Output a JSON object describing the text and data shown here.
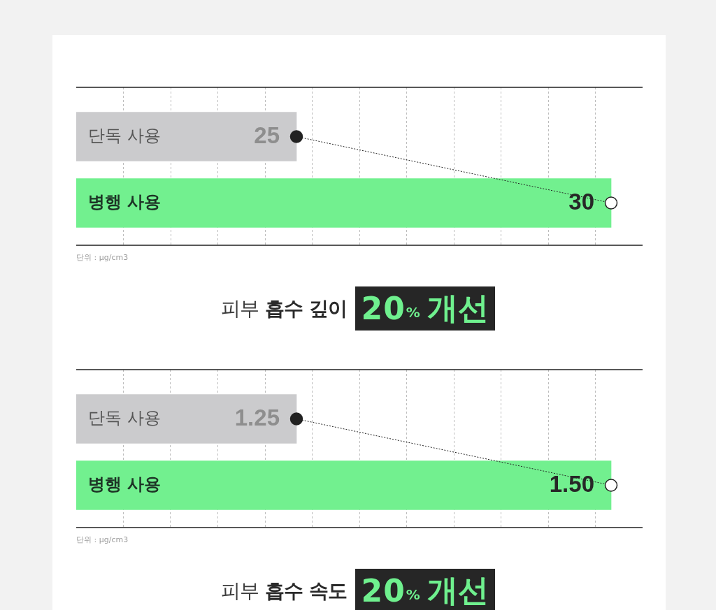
{
  "chart_data": [
    {
      "type": "bar",
      "orientation": "horizontal",
      "title": "피부 흡수 깊이",
      "subtitle": "20% 개선",
      "annotations": [
        "단위 : μg/cm3"
      ],
      "categories": [
        "단독 사용",
        "병행 사용"
      ],
      "series": [
        {
          "colors": [
            "#cbcbcd",
            "#72f08f"
          ],
          "values": [
            25,
            30
          ],
          "value_labels": [
            "25",
            "30"
          ]
        },
        {
          "type": "line",
          "color": "#222222",
          "colors": [
            "#222222",
            "#ffffff"
          ],
          "values": [
            25,
            30
          ]
        }
      ],
      "marker": "circle",
      "line_style": "dotted",
      "xlim": [
        21.5,
        30.5
      ],
      "xticks": [
        {
          "value": 22.25,
          "label": null
        },
        {
          "value": 23,
          "label": null
        },
        {
          "value": 23.75,
          "label": null
        },
        {
          "value": 24.5,
          "label": null
        },
        {
          "value": 25.25,
          "label": null
        },
        {
          "value": 26,
          "label": null
        },
        {
          "value": 26.75,
          "label": null
        },
        {
          "value": 27.5,
          "label": null
        },
        {
          "value": 28.25,
          "label": null
        },
        {
          "value": 29,
          "label": null
        },
        {
          "value": 29.75,
          "label": null
        }
      ],
      "grid": "x",
      "tick_labels": "y"
    },
    {
      "type": "bar",
      "orientation": "horizontal",
      "title": "피부 흡수 속도",
      "subtitle": "20% 개선",
      "annotations": [
        "단위 : μg/cm3"
      ],
      "categories": [
        "단독 사용",
        "병행 사용"
      ],
      "series": [
        {
          "colors": [
            "#cbcbcd",
            "#72f08f"
          ],
          "values": [
            1.25,
            1.5
          ],
          "value_labels": [
            "1.25",
            "1.50"
          ]
        },
        {
          "type": "line",
          "color": "#222222",
          "colors": [
            "#222222",
            "#ffffff"
          ],
          "values": [
            1.25,
            1.5
          ]
        }
      ],
      "marker": "circle",
      "line_style": "dotted",
      "xlim": [
        1.075,
        1.525
      ],
      "xticks": [
        {
          "value": 1.1125,
          "label": null
        },
        {
          "value": 1.15,
          "label": null
        },
        {
          "value": 1.1875,
          "label": null
        },
        {
          "value": 1.225,
          "label": null
        },
        {
          "value": 1.2625,
          "label": null
        },
        {
          "value": 1.3,
          "label": null
        },
        {
          "value": 1.3375,
          "label": null
        },
        {
          "value": 1.375,
          "label": null
        },
        {
          "value": 1.4125,
          "label": null
        },
        {
          "value": 1.45,
          "label": null
        },
        {
          "value": 1.4875,
          "label": null
        }
      ],
      "grid": "x",
      "tick_labels": "y"
    }
  ]
}
